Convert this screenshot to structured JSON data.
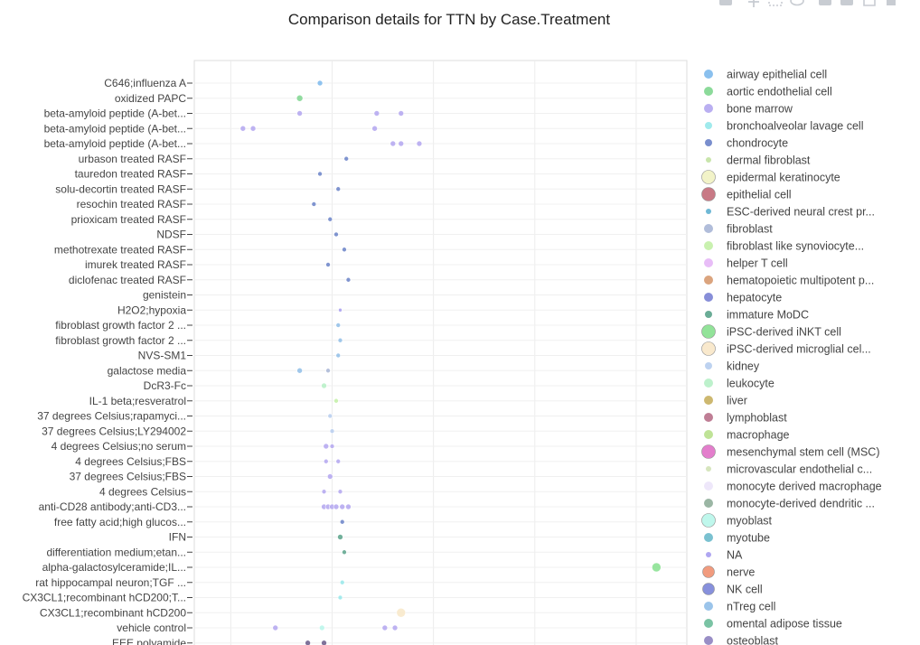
{
  "chart_data": {
    "type": "scatter",
    "title": "Comparison details for TTN by Case.Treatment",
    "xlabel": "",
    "ylabel": "",
    "grid": true,
    "legend_placement": "right",
    "categories": [
      "C646;influenza A",
      "oxidized PAPC",
      "beta-amyloid peptide (A-bet...",
      "beta-amyloid peptide (A-bet...",
      "beta-amyloid peptide (A-bet...",
      "urbason treated RASF",
      "tauredon treated RASF",
      "solu-decortin treated RASF",
      "resochin treated RASF",
      "prioxicam treated RASF",
      "NDSF",
      "methotrexate treated RASF",
      "imurek treated RASF",
      "diclofenac treated RASF",
      "genistein",
      "H2O2;hypoxia",
      "fibroblast growth factor 2 ...",
      "fibroblast growth factor 2 ...",
      "NVS-SM1",
      "galactose media",
      "DcR3-Fc",
      "IL-1 beta;resveratrol",
      "37 degrees Celsius;rapamyci...",
      "37 degrees Celsius;LY294002",
      "4 degrees Celsius;no serum",
      "4 degrees Celsius;FBS",
      "37 degrees Celsius;FBS",
      "4 degrees Celsius",
      "anti-CD28 antibody;anti-CD3...",
      "free fatty acid;high glucos...",
      "IFN",
      "differentiation medium;etan...",
      "alpha-galactosylceramide;IL...",
      "rat hippocampal neuron;TGF ...",
      "CX3CL1;recombinant hCD200;T...",
      "CX3CL1;recombinant hCD200",
      "vehicle control",
      "EEE polyamide"
    ],
    "series": [
      {
        "name": "airway epithelial cell",
        "color": "#7db9ec",
        "size": 9
      },
      {
        "name": "aortic endothelial cell",
        "color": "#7fd68f",
        "size": 9
      },
      {
        "name": "bone marrow",
        "color": "#b3a6f0",
        "size": 9
      },
      {
        "name": "bronchoalveolar lavage cell",
        "color": "#96e8ea",
        "size": 7
      },
      {
        "name": "chondrocyte",
        "color": "#6a82c8",
        "size": 7
      },
      {
        "name": "dermal fibroblast",
        "color": "#c2e2a2",
        "size": 5
      },
      {
        "name": "epidermal keratinocyte",
        "color": "#f1f2c2",
        "size": 14
      },
      {
        "name": "epithelial cell",
        "color": "#c26a78",
        "size": 14
      },
      {
        "name": "ESC-derived neural crest pr...",
        "color": "#5fb0d0",
        "size": 5
      },
      {
        "name": "fibroblast",
        "color": "#a9b6d6",
        "size": 9
      },
      {
        "name": "fibroblast like synoviocyte...",
        "color": "#c3f0a6",
        "size": 9
      },
      {
        "name": "helper T cell",
        "color": "#e6b6f6",
        "size": 9
      },
      {
        "name": "hematopoietic multipotent p...",
        "color": "#d79a70",
        "size": 9
      },
      {
        "name": "hepatocyte",
        "color": "#7a82d4",
        "size": 9
      },
      {
        "name": "immature MoDC",
        "color": "#5aa38b",
        "size": 7
      },
      {
        "name": "iPSC-derived iNKT cell",
        "color": "#86e08e",
        "size": 14
      },
      {
        "name": "iPSC-derived microglial cel...",
        "color": "#f8e7c8",
        "size": 14
      },
      {
        "name": "kidney",
        "color": "#b6cdee",
        "size": 7
      },
      {
        "name": "leukocyte",
        "color": "#b6f0c6",
        "size": 9
      },
      {
        "name": "liver",
        "color": "#c8b060",
        "size": 9
      },
      {
        "name": "lymphoblast",
        "color": "#b8708a",
        "size": 9
      },
      {
        "name": "macrophage",
        "color": "#b8e08c",
        "size": 9
      },
      {
        "name": "mesenchymal stem cell (MSC)",
        "color": "#e070c6",
        "size": 14
      },
      {
        "name": "microvascular endothelial c...",
        "color": "#d2e2b6",
        "size": 5
      },
      {
        "name": "monocyte derived macrophage",
        "color": "#ece4fa",
        "size": 9
      },
      {
        "name": "monocyte-derived dendritic ...",
        "color": "#90ae9a",
        "size": 9
      },
      {
        "name": "myoblast",
        "color": "#b8f6ea",
        "size": 14
      },
      {
        "name": "myotube",
        "color": "#6cbacb",
        "size": 9
      },
      {
        "name": "NA",
        "color": "#a69cf0",
        "size": 5
      },
      {
        "name": "nerve",
        "color": "#f09070",
        "size": 12
      },
      {
        "name": "NK cell",
        "color": "#7a84d8",
        "size": 12
      },
      {
        "name": "nTreg cell",
        "color": "#90bee8",
        "size": 9
      },
      {
        "name": "omental adipose tissue",
        "color": "#6bbd9a",
        "size": 9
      },
      {
        "name": "osteoblast",
        "color": "#8e82c0",
        "size": 9
      }
    ],
    "points": [
      {
        "category": 0,
        "x": 2.2,
        "color": "#7db9ec",
        "size": 5
      },
      {
        "category": 1,
        "x": 1.7,
        "color": "#7fd68f",
        "size": 6
      },
      {
        "category": 2,
        "x": 1.7,
        "color": "#b3a6f0",
        "size": 5
      },
      {
        "category": 2,
        "x": 3.6,
        "color": "#b3a6f0",
        "size": 5
      },
      {
        "category": 2,
        "x": 4.2,
        "color": "#b3a6f0",
        "size": 5
      },
      {
        "category": 3,
        "x": 0.3,
        "color": "#b3a6f0",
        "size": 5
      },
      {
        "category": 3,
        "x": 0.55,
        "color": "#b3a6f0",
        "size": 5
      },
      {
        "category": 3,
        "x": 3.55,
        "color": "#b3a6f0",
        "size": 5
      },
      {
        "category": 4,
        "x": 4.0,
        "color": "#b3a6f0",
        "size": 5
      },
      {
        "category": 4,
        "x": 4.2,
        "color": "#b3a6f0",
        "size": 5
      },
      {
        "category": 4,
        "x": 4.65,
        "color": "#b3a6f0",
        "size": 5
      },
      {
        "category": 5,
        "x": 2.85,
        "color": "#6a82c8",
        "size": 4
      },
      {
        "category": 6,
        "x": 2.2,
        "color": "#6a82c8",
        "size": 4
      },
      {
        "category": 7,
        "x": 2.65,
        "color": "#6a82c8",
        "size": 4
      },
      {
        "category": 8,
        "x": 2.05,
        "color": "#6a82c8",
        "size": 4
      },
      {
        "category": 9,
        "x": 2.45,
        "color": "#6a82c8",
        "size": 4
      },
      {
        "category": 10,
        "x": 2.6,
        "color": "#6a82c8",
        "size": 4
      },
      {
        "category": 11,
        "x": 2.8,
        "color": "#6a82c8",
        "size": 4
      },
      {
        "category": 12,
        "x": 2.4,
        "color": "#6a82c8",
        "size": 4
      },
      {
        "category": 13,
        "x": 2.9,
        "color": "#6a82c8",
        "size": 4
      },
      {
        "category": 15,
        "x": 2.7,
        "color": "#a69cf0",
        "size": 3
      },
      {
        "category": 16,
        "x": 2.65,
        "color": "#90bee8",
        "size": 4
      },
      {
        "category": 17,
        "x": 2.7,
        "color": "#90bee8",
        "size": 4
      },
      {
        "category": 18,
        "x": 2.65,
        "color": "#90bee8",
        "size": 4
      },
      {
        "category": 19,
        "x": 1.7,
        "color": "#90bee8",
        "size": 5
      },
      {
        "category": 19,
        "x": 2.4,
        "color": "#a9b6d6",
        "size": 4
      },
      {
        "category": 20,
        "x": 2.3,
        "color": "#b6f0c6",
        "size": 5
      },
      {
        "category": 21,
        "x": 2.6,
        "color": "#c3f0a6",
        "size": 4
      },
      {
        "category": 22,
        "x": 2.45,
        "color": "#b6cdee",
        "size": 4
      },
      {
        "category": 23,
        "x": 2.5,
        "color": "#b6cdee",
        "size": 4
      },
      {
        "category": 24,
        "x": 2.35,
        "color": "#b3a6f0",
        "size": 5
      },
      {
        "category": 24,
        "x": 2.5,
        "color": "#b3a6f0",
        "size": 4
      },
      {
        "category": 25,
        "x": 2.35,
        "color": "#b3a6f0",
        "size": 4
      },
      {
        "category": 25,
        "x": 2.65,
        "color": "#b3a6f0",
        "size": 4
      },
      {
        "category": 26,
        "x": 2.45,
        "color": "#b3a6f0",
        "size": 5
      },
      {
        "category": 27,
        "x": 2.3,
        "color": "#b3a6f0",
        "size": 4
      },
      {
        "category": 27,
        "x": 2.7,
        "color": "#b3a6f0",
        "size": 4
      },
      {
        "category": 28,
        "x": 2.3,
        "color": "#b3a6f0",
        "size": 5
      },
      {
        "category": 28,
        "x": 2.4,
        "color": "#b3a6f0",
        "size": 5
      },
      {
        "category": 28,
        "x": 2.5,
        "color": "#b3a6f0",
        "size": 5
      },
      {
        "category": 28,
        "x": 2.6,
        "color": "#b3a6f0",
        "size": 5
      },
      {
        "category": 28,
        "x": 2.75,
        "color": "#b3a6f0",
        "size": 5
      },
      {
        "category": 28,
        "x": 2.9,
        "color": "#b3a6f0",
        "size": 5
      },
      {
        "category": 29,
        "x": 2.75,
        "color": "#6a82c8",
        "size": 4
      },
      {
        "category": 30,
        "x": 2.7,
        "color": "#5aa38b",
        "size": 5
      },
      {
        "category": 31,
        "x": 2.8,
        "color": "#5aa38b",
        "size": 4
      },
      {
        "category": 32,
        "x": 10.5,
        "color": "#86e08e",
        "size": 9
      },
      {
        "category": 33,
        "x": 2.75,
        "color": "#96e8ea",
        "size": 4
      },
      {
        "category": 34,
        "x": 2.7,
        "color": "#96e8ea",
        "size": 4
      },
      {
        "category": 35,
        "x": 4.2,
        "color": "#f8e7c8",
        "size": 9
      },
      {
        "category": 36,
        "x": 1.1,
        "color": "#b3a6f0",
        "size": 5
      },
      {
        "category": 36,
        "x": 2.25,
        "color": "#b8f6ea",
        "size": 5
      },
      {
        "category": 36,
        "x": 3.8,
        "color": "#b3a6f0",
        "size": 5
      },
      {
        "category": 36,
        "x": 4.05,
        "color": "#b3a6f0",
        "size": 5
      },
      {
        "category": 37,
        "x": 1.9,
        "color": "#6a5a8a",
        "size": 5
      },
      {
        "category": 37,
        "x": 2.3,
        "color": "#6a5a8a",
        "size": 5
      }
    ],
    "xlim": [
      -0.9,
      11.25
    ],
    "x_gridlines": [
      0,
      2.5,
      5,
      7.5,
      10
    ],
    "ylim_note": "categories listed top to bottom"
  },
  "toolbar": {
    "icons": [
      "camera-icon",
      "pan-icon",
      "box-select-icon",
      "lasso-icon",
      "zoom-in-icon",
      "zoom-out-icon",
      "autoscale-icon",
      "home-icon"
    ]
  }
}
